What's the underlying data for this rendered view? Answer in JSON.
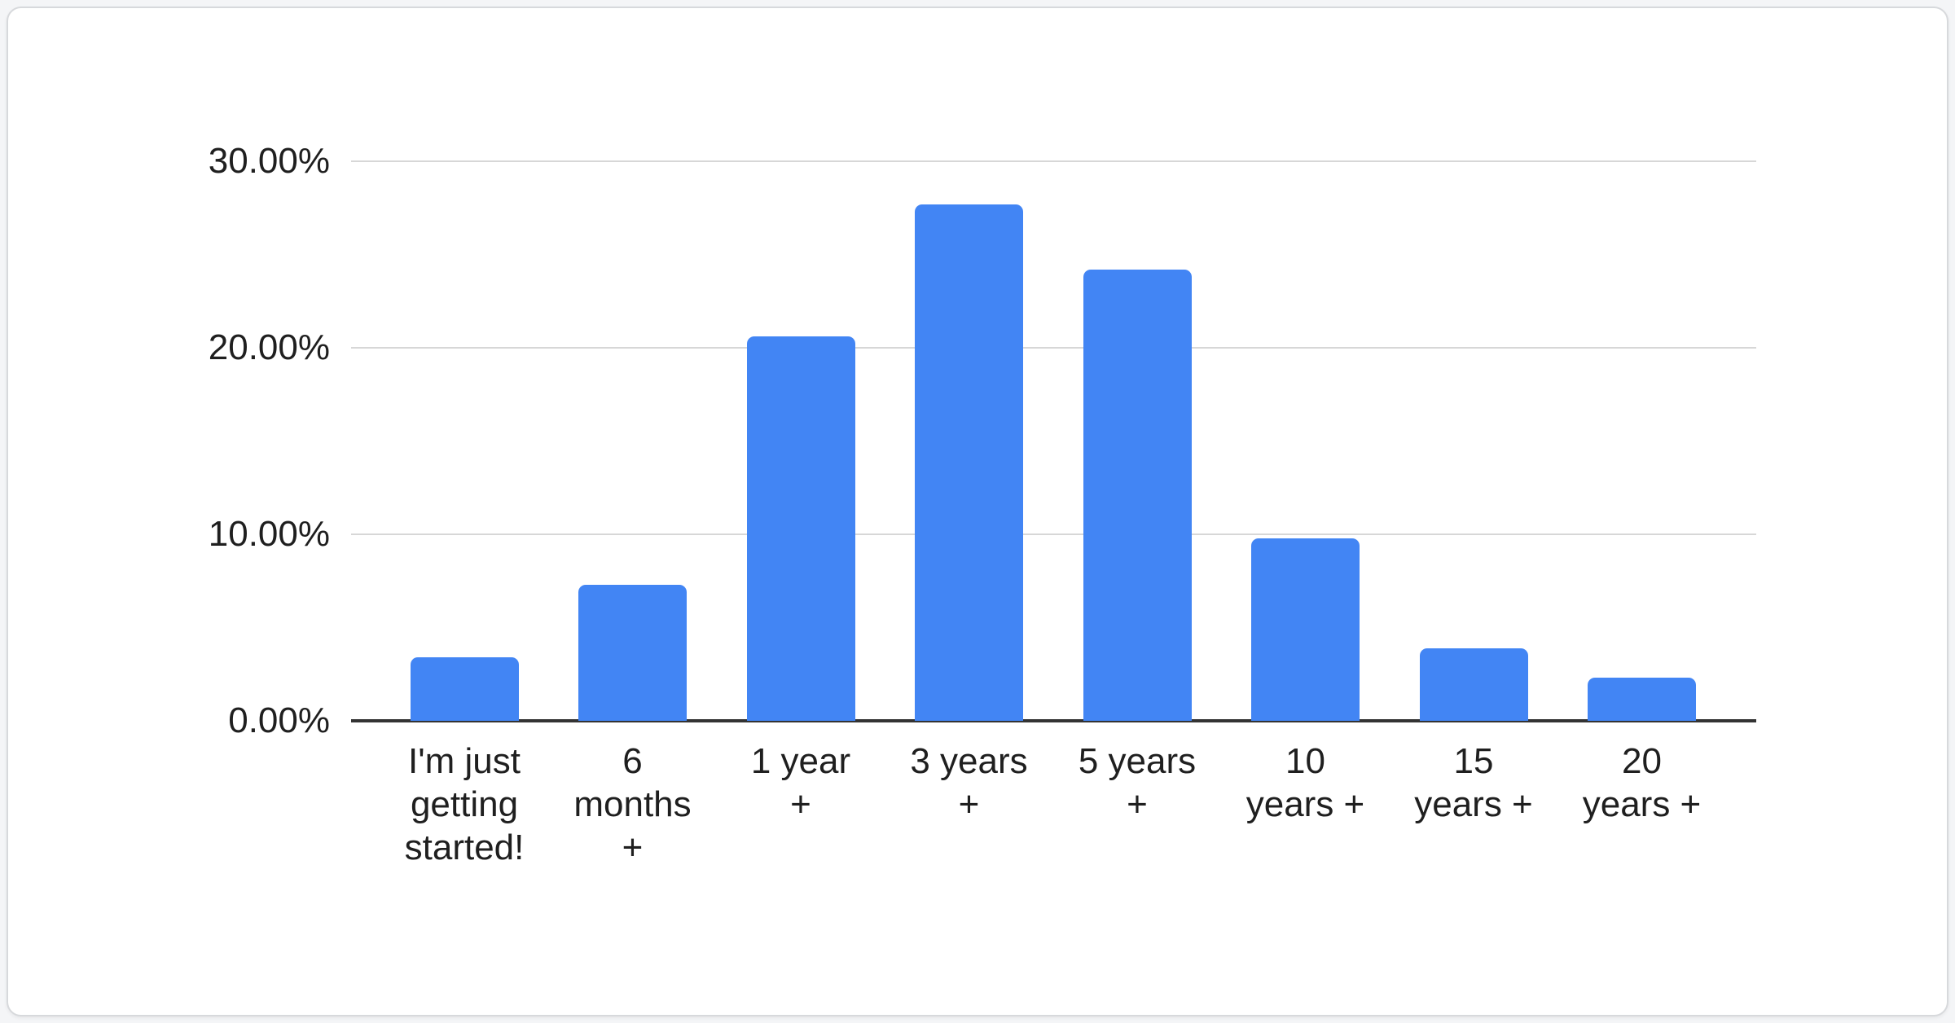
{
  "chart_data": {
    "type": "bar",
    "title": "",
    "xlabel": "",
    "ylabel": "",
    "categories": [
      "I'm just getting started!",
      "6 months +",
      "1 year +",
      "3 years +",
      "5 years +",
      "10 years +",
      "15 years +",
      "20 years +"
    ],
    "category_lines": [
      [
        "I'm just",
        "getting",
        "started!"
      ],
      [
        "6",
        "months",
        "+"
      ],
      [
        "1 year",
        "+"
      ],
      [
        "3 years",
        "+"
      ],
      [
        "5 years",
        "+"
      ],
      [
        "10",
        "years +"
      ],
      [
        "15",
        "years +"
      ],
      [
        "20",
        "years +"
      ]
    ],
    "values": [
      3.4,
      7.3,
      20.6,
      27.7,
      24.2,
      9.8,
      3.9,
      2.3
    ],
    "value_unit": "%",
    "ylim": [
      0,
      30
    ],
    "yticks": [
      0,
      10,
      20,
      30
    ],
    "ytick_labels": [
      "0.00%",
      "10.00%",
      "20.00%",
      "30.00%"
    ],
    "grid": true,
    "legend": false,
    "colors": {
      "bar": "#4285f4",
      "gridline": "#d7d7d7",
      "axis_line": "#333333",
      "text": "#1f1f1f",
      "card_background": "#ffffff",
      "card_border": "#d7d9dc"
    }
  }
}
